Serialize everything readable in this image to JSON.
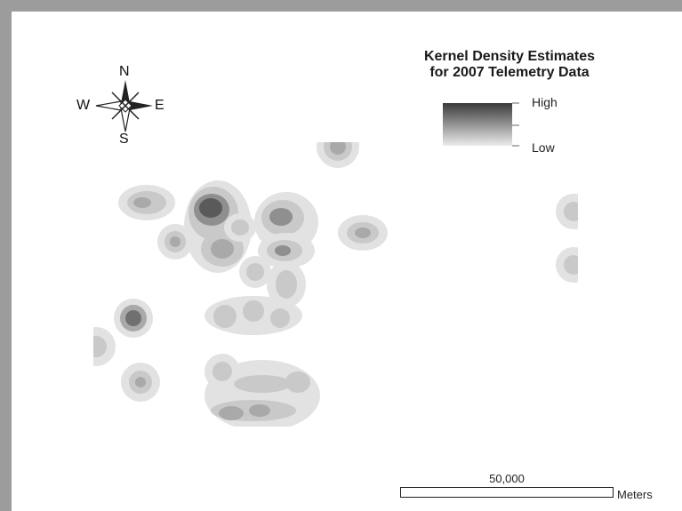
{
  "title": {
    "line1": "Kernel Density Estimates",
    "line2": "for 2007 Telemetry Data"
  },
  "legend": {
    "high_label": "High",
    "low_label": "Low",
    "high_color": "#3a3a3a",
    "low_color": "#ececec"
  },
  "compass": {
    "north": "N",
    "south": "S",
    "east": "E",
    "west": "W"
  },
  "scale_bar": {
    "value": "50,000",
    "unit": "Meters"
  },
  "colors": {
    "frame": "#9c9c9c",
    "ring_outer": "#e2e2e2",
    "ring_mid": "#c9c9c9",
    "ring_inner": "#a9a9a9",
    "peak": "#5a5a5a"
  }
}
